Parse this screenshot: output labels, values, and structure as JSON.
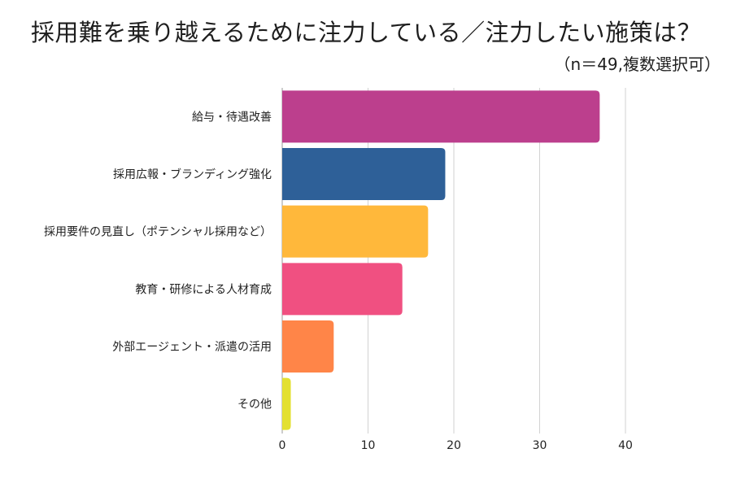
{
  "chart_data": {
    "type": "bar",
    "orientation": "horizontal",
    "title": "採用難を乗り越えるために注力している／注力したい施策は？",
    "subtitle": "（n＝49,複数選択可）",
    "categories": [
      "給与・待遇改善",
      "採用広報・ブランディング強化",
      "採用要件の見直し（ポテンシャル採用など）",
      "教育・研修による人材育成",
      "外部エージェント・派遣の活用",
      "その他"
    ],
    "values": [
      37,
      19,
      17,
      14,
      6,
      1
    ],
    "colors": [
      "#bc3f8d",
      "#2e6098",
      "#ffb83b",
      "#f05081",
      "#ff8548",
      "#e3e032"
    ],
    "xlim": [
      0,
      40
    ],
    "xticks": [
      0,
      10,
      20,
      30,
      40
    ],
    "grid": true,
    "legend": "none",
    "xlabel": "",
    "ylabel": ""
  }
}
